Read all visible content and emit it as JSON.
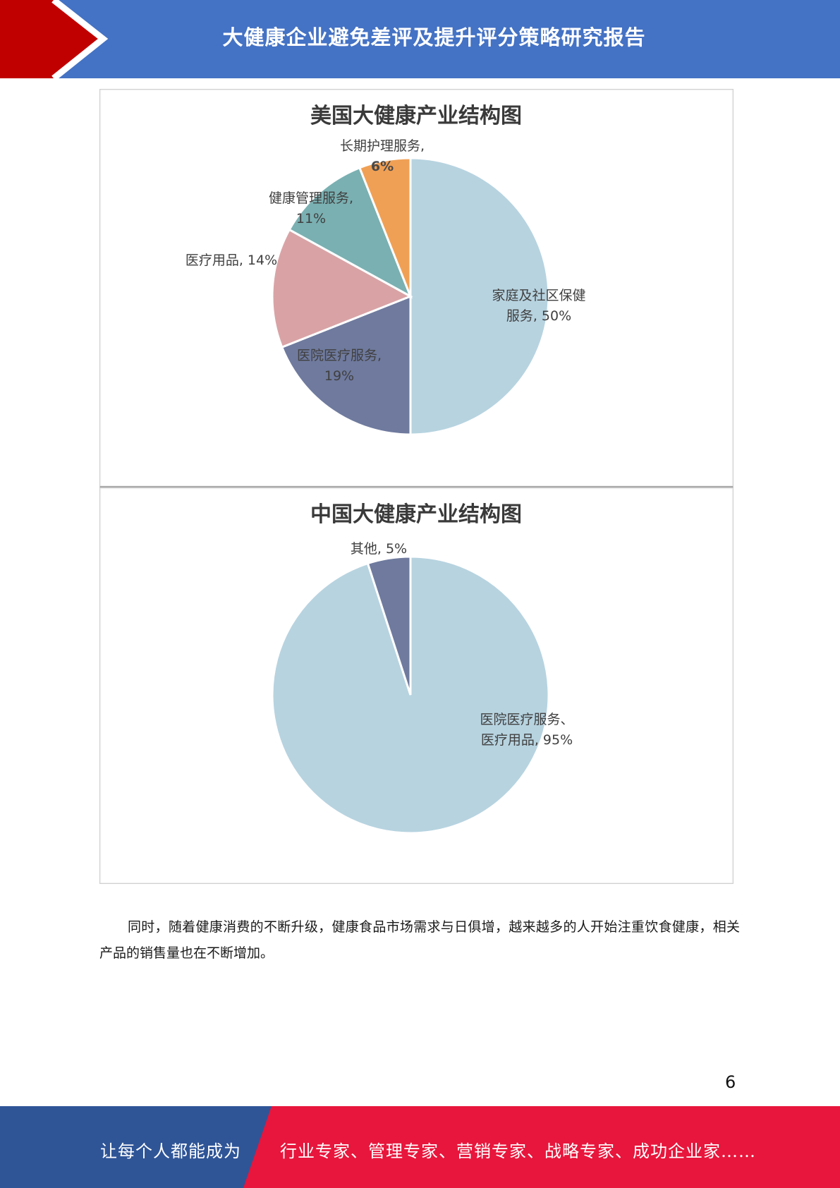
{
  "header": {
    "title": "大健康企业避免差评及提升评分策略研究报告",
    "background_color": "#4472c4",
    "accent_color": "#c00000"
  },
  "chart_data": [
    {
      "type": "pie",
      "title": "美国大健康产业结构图",
      "slices": [
        {
          "label": "家庭及社区保健服务",
          "value": 50,
          "display": [
            "家庭及社区保健",
            "服务, 50%"
          ],
          "color": "#b7d3e0"
        },
        {
          "label": "医院医疗服务",
          "value": 19,
          "display": [
            "医院医疗服务,",
            "19%"
          ],
          "color": "#6f7a9e"
        },
        {
          "label": "医疗用品",
          "value": 14,
          "display": [
            "医疗用品, 14%"
          ],
          "color": "#d9a3a6"
        },
        {
          "label": "健康管理服务",
          "value": 11,
          "display": [
            "健康管理服务,",
            "11%"
          ],
          "color": "#7ab0b2"
        },
        {
          "label": "长期护理服务",
          "value": 6,
          "display": [
            "长期护理服务,",
            "6%"
          ],
          "color": "#f0a055"
        }
      ]
    },
    {
      "type": "pie",
      "title": "中国大健康产业结构图",
      "slices": [
        {
          "label": "医院医疗服务、医疗用品",
          "value": 95,
          "display": [
            "医院医疗服务、",
            "医疗用品, 95%"
          ],
          "color": "#b7d3e0"
        },
        {
          "label": "其他",
          "value": 5,
          "display": [
            "其他, 5%"
          ],
          "color": "#6f7a9e"
        }
      ]
    }
  ],
  "body": {
    "paragraph": "同时，随着健康消费的不断升级，健康食品市场需求与日俱增，越来越多的人开始注重饮食健康，相关产品的销售量也在不断增加。"
  },
  "page_number": "6",
  "footer": {
    "left_text": "让每个人都能成为",
    "right_text": "行业专家、管理专家、营销专家、战略专家、成功企业家……",
    "left_color": "#2f5597",
    "right_color": "#e8163c"
  }
}
